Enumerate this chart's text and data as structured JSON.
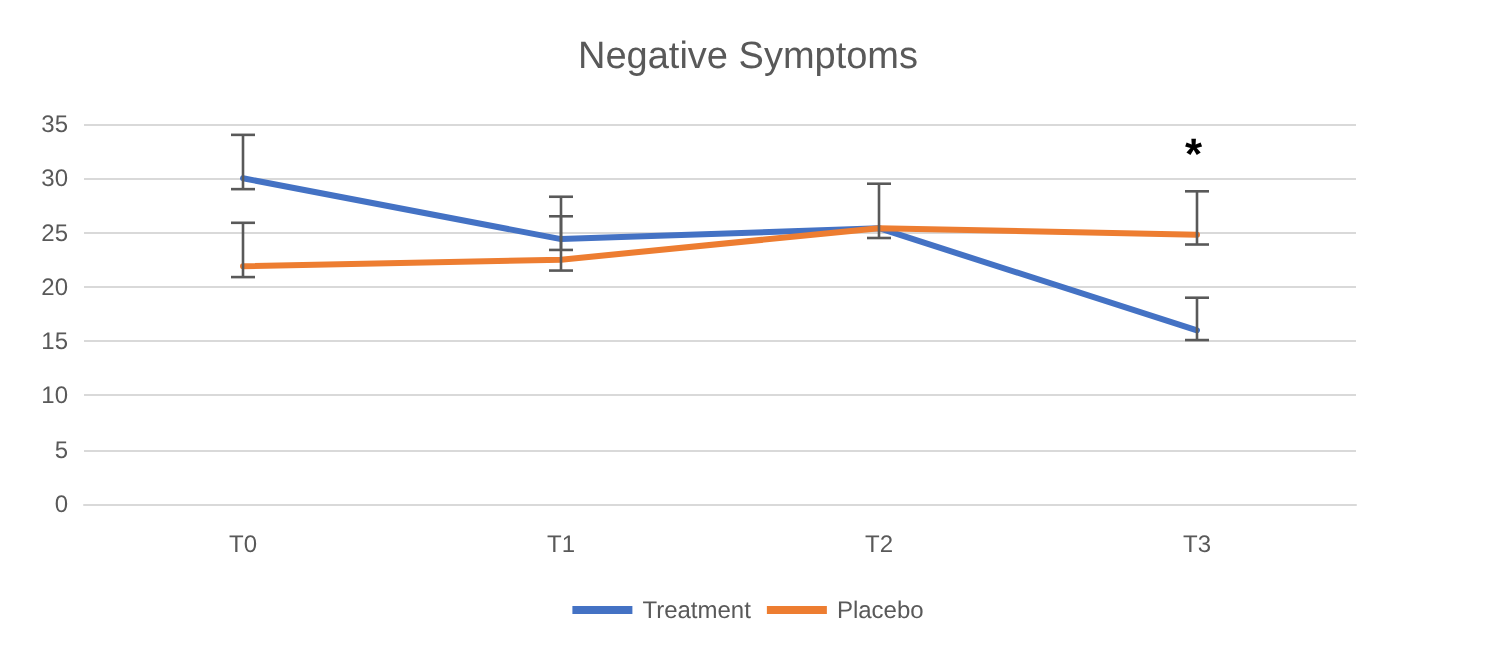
{
  "chart_data": {
    "type": "line",
    "title": "Negative Symptoms",
    "categories": [
      "T0",
      "T1",
      "T2",
      "T3"
    ],
    "series": [
      {
        "name": "Treatment",
        "color": "#4472c4",
        "values": [
          30,
          24.4,
          25.4,
          16
        ],
        "errors": [
          [
            29,
            34
          ],
          [
            23.4,
            28.3
          ],
          [
            24.5,
            29.5
          ],
          [
            15.1,
            19
          ]
        ]
      },
      {
        "name": "Placebo",
        "color": "#ed7d31",
        "values": [
          21.9,
          22.5,
          25.4,
          24.8
        ],
        "errors": [
          [
            20.9,
            25.9
          ],
          [
            21.5,
            26.5
          ],
          null,
          [
            23.9,
            28.8
          ]
        ]
      }
    ],
    "ylim": [
      0,
      35
    ],
    "yticks": [
      0,
      5,
      10,
      15,
      20,
      25,
      30,
      35
    ],
    "grid": "y",
    "legend": "bottom",
    "marker": "none",
    "line_style": "solid",
    "annotations": [
      "*"
    ]
  }
}
